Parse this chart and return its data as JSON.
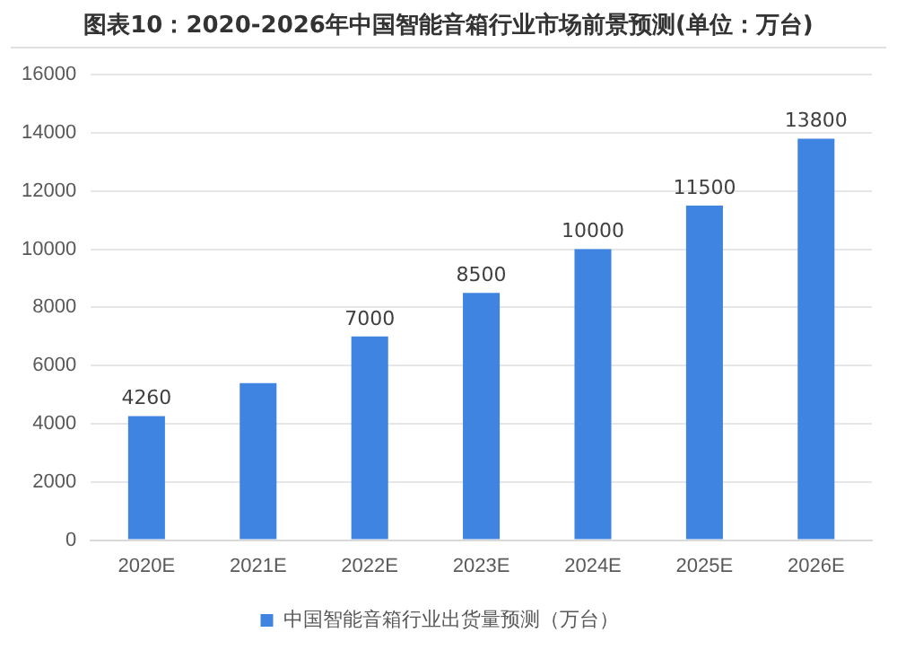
{
  "chart_data": {
    "type": "bar",
    "title": "图表10：2020-2026年中国智能音箱行业市场前景预测(单位：万台)",
    "categories": [
      "2020E",
      "2021E",
      "2022E",
      "2023E",
      "2024E",
      "2025E",
      "2026E"
    ],
    "series": [
      {
        "name": "中国智能音箱行业出货量预测（万台）",
        "color": "#3f84e0",
        "values": [
          4260,
          5400,
          7000,
          8500,
          10000,
          11500,
          13800
        ],
        "value_labels": [
          "4260",
          null,
          "7000",
          "8500",
          "10000",
          "11500",
          "13800"
        ]
      }
    ],
    "ylim": [
      0,
      16000
    ],
    "yticks": [
      0,
      2000,
      4000,
      6000,
      8000,
      10000,
      12000,
      14000,
      16000
    ],
    "grid": "y",
    "legend": "bottom"
  }
}
